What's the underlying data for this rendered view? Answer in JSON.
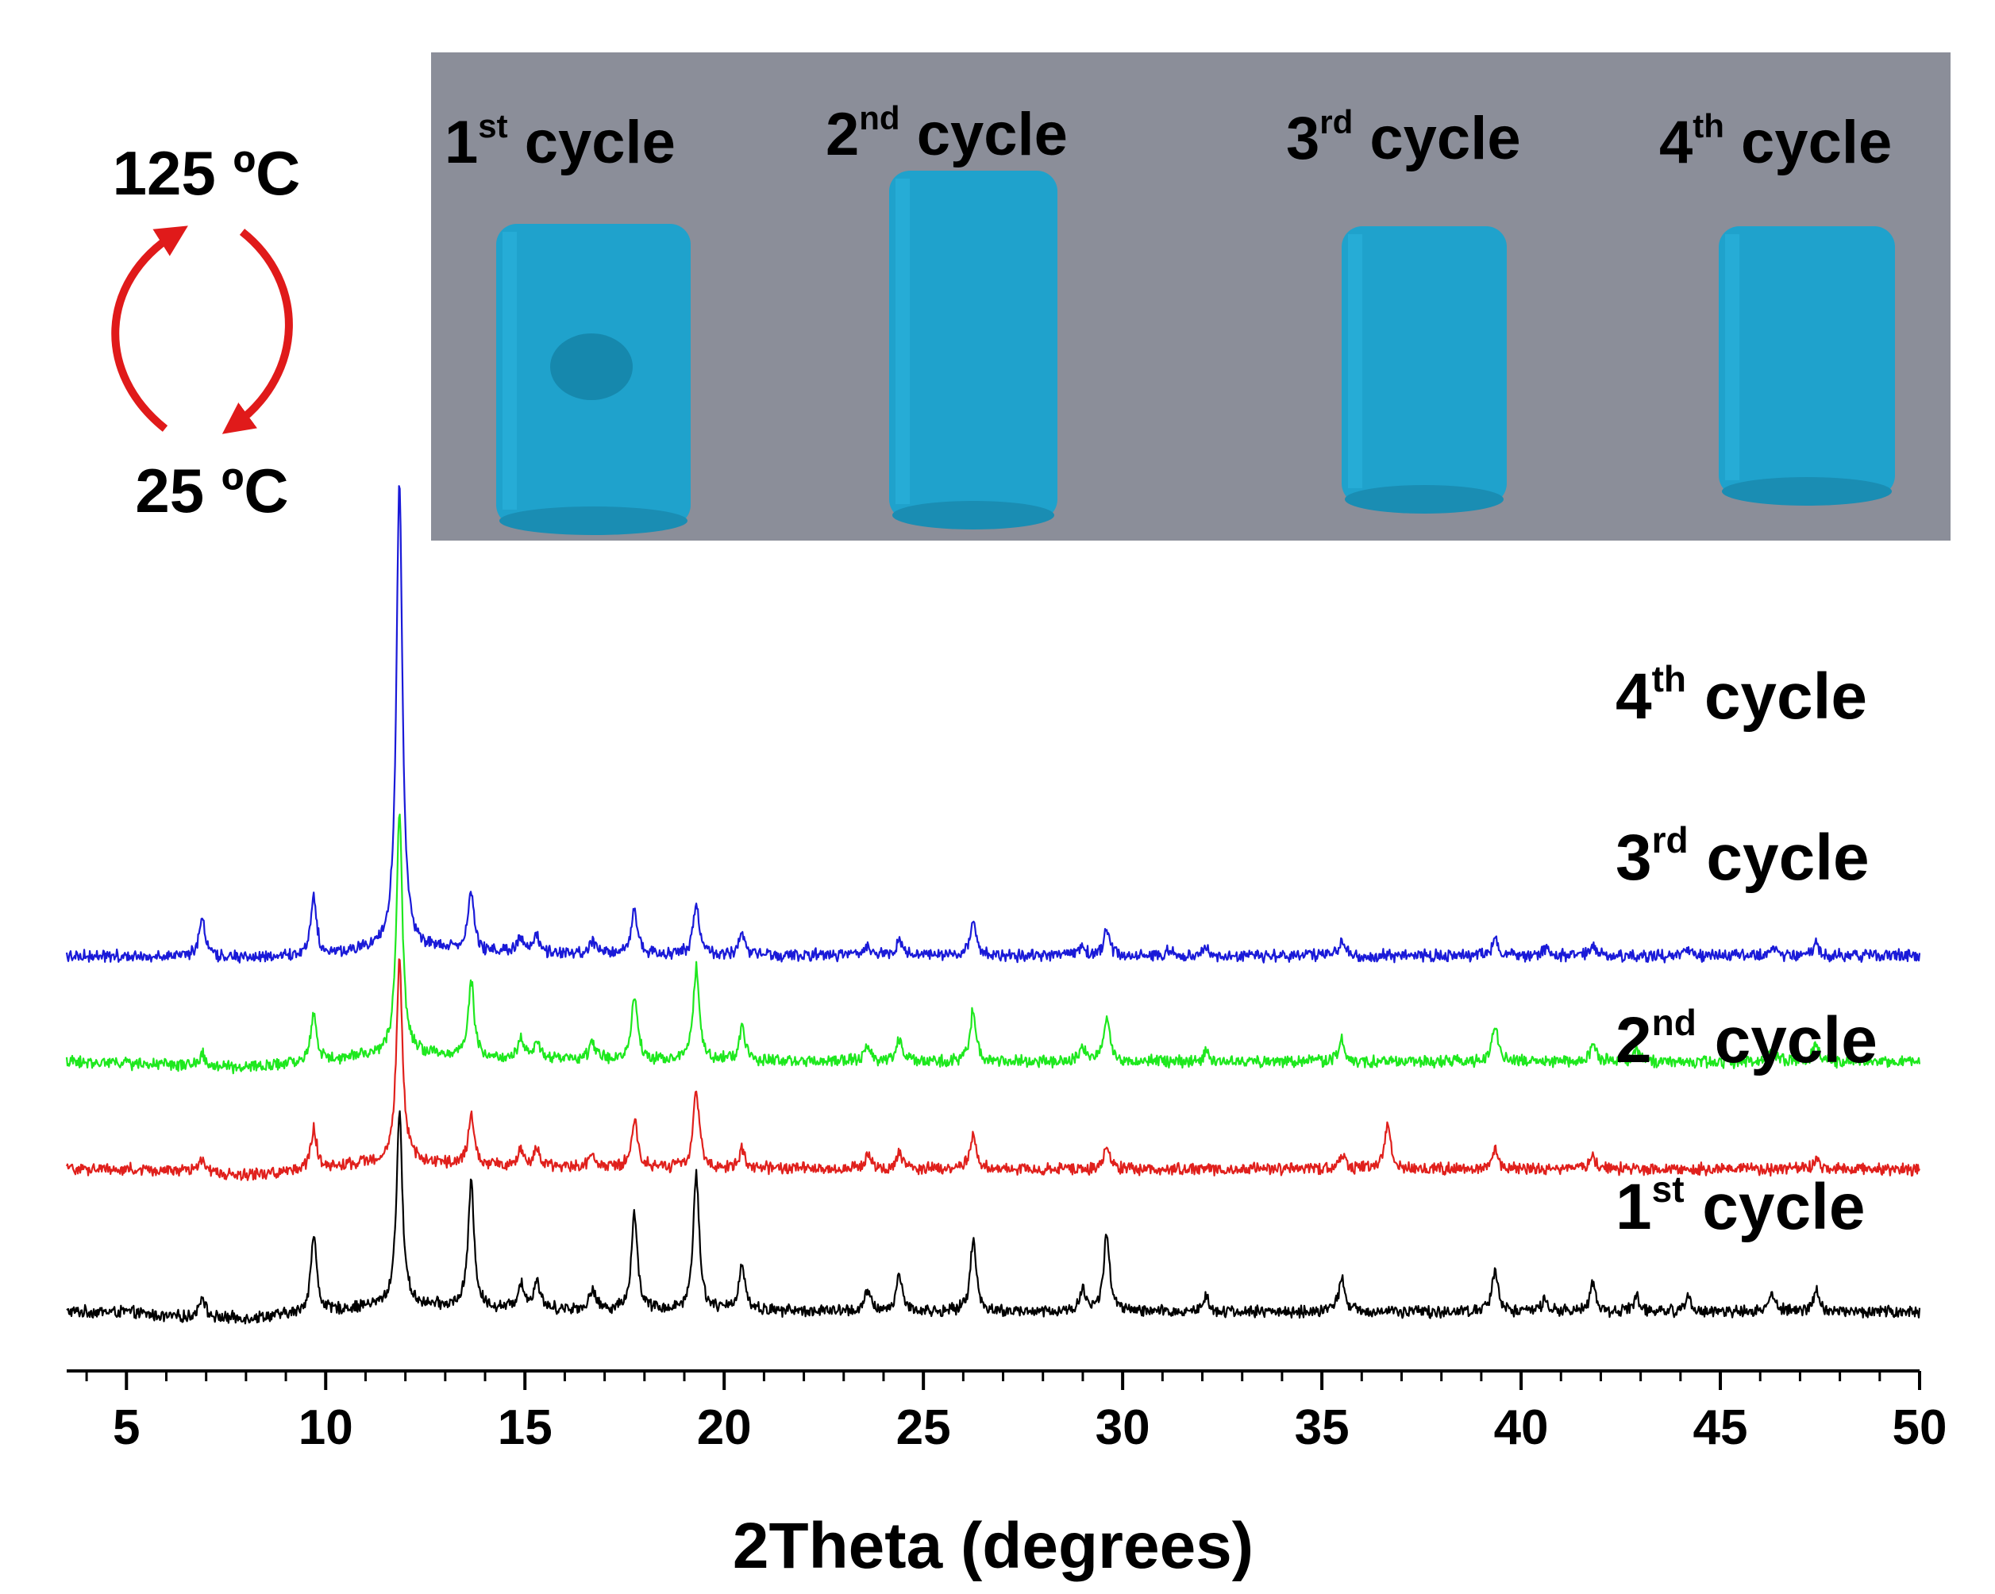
{
  "chart_data": {
    "type": "line",
    "xlabel": "2Theta (degrees)",
    "ylabel": "",
    "xlim": [
      3.5,
      50
    ],
    "xticks": [
      5,
      10,
      15,
      20,
      25,
      30,
      35,
      40,
      45,
      50
    ],
    "grid": false,
    "y_axis_visible": false,
    "noise_amplitude": 2.2,
    "series": [
      {
        "name": "1st cycle",
        "color": "#000000",
        "baseline": 20,
        "baseline_shape": [
          [
            3.5,
            2
          ],
          [
            5,
            2
          ],
          [
            6,
            -1
          ],
          [
            7,
            -2
          ],
          [
            8,
            -2
          ],
          [
            9,
            0
          ],
          [
            10,
            2
          ],
          [
            11,
            5
          ],
          [
            12,
            6
          ],
          [
            14,
            4
          ],
          [
            18,
            3
          ],
          [
            25,
            2
          ],
          [
            50,
            2
          ]
        ],
        "peaks": [
          [
            6.9,
            14
          ],
          [
            9.7,
            48
          ],
          [
            11.85,
            120
          ],
          [
            13.65,
            78
          ],
          [
            14.9,
            16
          ],
          [
            15.3,
            18
          ],
          [
            16.7,
            12
          ],
          [
            17.75,
            60
          ],
          [
            19.3,
            85
          ],
          [
            20.45,
            30
          ],
          [
            23.6,
            12
          ],
          [
            24.4,
            23
          ],
          [
            26.25,
            45
          ],
          [
            29.0,
            14
          ],
          [
            29.6,
            48
          ],
          [
            32.1,
            10
          ],
          [
            35.5,
            22
          ],
          [
            39.35,
            27
          ],
          [
            40.6,
            8
          ],
          [
            41.8,
            18
          ],
          [
            42.9,
            10
          ],
          [
            44.2,
            10
          ],
          [
            46.3,
            12
          ],
          [
            47.4,
            14
          ]
        ]
      },
      {
        "name": "2nd cycle",
        "color": "#e0201c",
        "baseline": 109,
        "baseline_shape": [
          [
            3.5,
            2
          ],
          [
            5,
            2
          ],
          [
            7,
            0
          ],
          [
            8,
            -2
          ],
          [
            9,
            0
          ],
          [
            10,
            2
          ],
          [
            11,
            6
          ],
          [
            12,
            7
          ],
          [
            14,
            4
          ],
          [
            18,
            3
          ],
          [
            25,
            2
          ],
          [
            50,
            2
          ]
        ],
        "peaks": [
          [
            6.9,
            8
          ],
          [
            9.7,
            26
          ],
          [
            11.85,
            125
          ],
          [
            13.65,
            30
          ],
          [
            14.9,
            10
          ],
          [
            15.3,
            10
          ],
          [
            16.7,
            8
          ],
          [
            17.75,
            30
          ],
          [
            19.3,
            48
          ],
          [
            20.45,
            12
          ],
          [
            23.6,
            8
          ],
          [
            24.4,
            10
          ],
          [
            26.25,
            22
          ],
          [
            29.6,
            14
          ],
          [
            35.5,
            10
          ],
          [
            36.65,
            28
          ],
          [
            39.35,
            12
          ],
          [
            41.8,
            7
          ],
          [
            47.4,
            6
          ]
        ]
      },
      {
        "name": "3rd cycle",
        "color": "#1ee81e",
        "baseline": 176,
        "baseline_shape": [
          [
            3.5,
            2
          ],
          [
            5,
            1
          ],
          [
            7,
            -1
          ],
          [
            8,
            -2
          ],
          [
            9,
            0
          ],
          [
            10,
            2
          ],
          [
            11,
            6
          ],
          [
            12,
            7
          ],
          [
            14,
            4
          ],
          [
            18,
            3
          ],
          [
            25,
            2
          ],
          [
            50,
            2
          ]
        ],
        "peaks": [
          [
            6.9,
            8
          ],
          [
            9.7,
            30
          ],
          [
            11.85,
            150
          ],
          [
            13.65,
            48
          ],
          [
            14.9,
            13
          ],
          [
            15.3,
            12
          ],
          [
            16.7,
            11
          ],
          [
            17.75,
            40
          ],
          [
            19.3,
            58
          ],
          [
            20.45,
            20
          ],
          [
            23.6,
            10
          ],
          [
            24.4,
            13
          ],
          [
            26.25,
            33
          ],
          [
            29.0,
            8
          ],
          [
            29.6,
            28
          ],
          [
            32.1,
            6
          ],
          [
            35.5,
            14
          ],
          [
            39.35,
            22
          ],
          [
            41.8,
            10
          ],
          [
            42.9,
            7
          ],
          [
            46.3,
            8
          ],
          [
            47.4,
            10
          ]
        ]
      },
      {
        "name": "4th cycle",
        "color": "#1a1ad8",
        "baseline": 243,
        "baseline_shape": [
          [
            3.5,
            1
          ],
          [
            5,
            1
          ],
          [
            8,
            0
          ],
          [
            10,
            1
          ],
          [
            11,
            5
          ],
          [
            12,
            6
          ],
          [
            14,
            3
          ],
          [
            18,
            2
          ],
          [
            25,
            1
          ],
          [
            50,
            1
          ]
        ],
        "peaks": [
          [
            6.9,
            26
          ],
          [
            9.7,
            36
          ],
          [
            11.85,
            290
          ],
          [
            13.65,
            38
          ],
          [
            14.9,
            9
          ],
          [
            15.3,
            11
          ],
          [
            16.7,
            8
          ],
          [
            17.75,
            28
          ],
          [
            19.3,
            32
          ],
          [
            20.45,
            12
          ],
          [
            23.6,
            6
          ],
          [
            24.4,
            9
          ],
          [
            26.25,
            20
          ],
          [
            29.0,
            6
          ],
          [
            29.6,
            15
          ],
          [
            31.2,
            4
          ],
          [
            32.1,
            5
          ],
          [
            35.5,
            9
          ],
          [
            39.35,
            10
          ],
          [
            40.6,
            5
          ],
          [
            41.8,
            6
          ],
          [
            44.2,
            4
          ],
          [
            46.3,
            5
          ],
          [
            47.4,
            7
          ]
        ]
      }
    ]
  },
  "series_labels": [
    {
      "main": "1",
      "sup": "st",
      "rest": " cycle"
    },
    {
      "main": "2",
      "sup": "nd",
      "rest": " cycle"
    },
    {
      "main": "3",
      "sup": "rd",
      "rest": " cycle"
    },
    {
      "main": "4",
      "sup": "th",
      "rest": " cycle"
    }
  ],
  "thermal_cycle": {
    "top_label": "125 ºC",
    "bottom_label": "25 ºC",
    "arrow_color": "#e01a1a"
  },
  "photo_inset": {
    "background": "#8b8e99",
    "sample_color": "#1fa2cc",
    "labels": [
      {
        "main": "1",
        "sup": "st",
        "rest": " cycle"
      },
      {
        "main": "2",
        "sup": "nd",
        "rest": " cycle"
      },
      {
        "main": "3",
        "sup": "rd",
        "rest": " cycle"
      },
      {
        "main": "4",
        "sup": "th",
        "rest": " cycle"
      }
    ]
  }
}
